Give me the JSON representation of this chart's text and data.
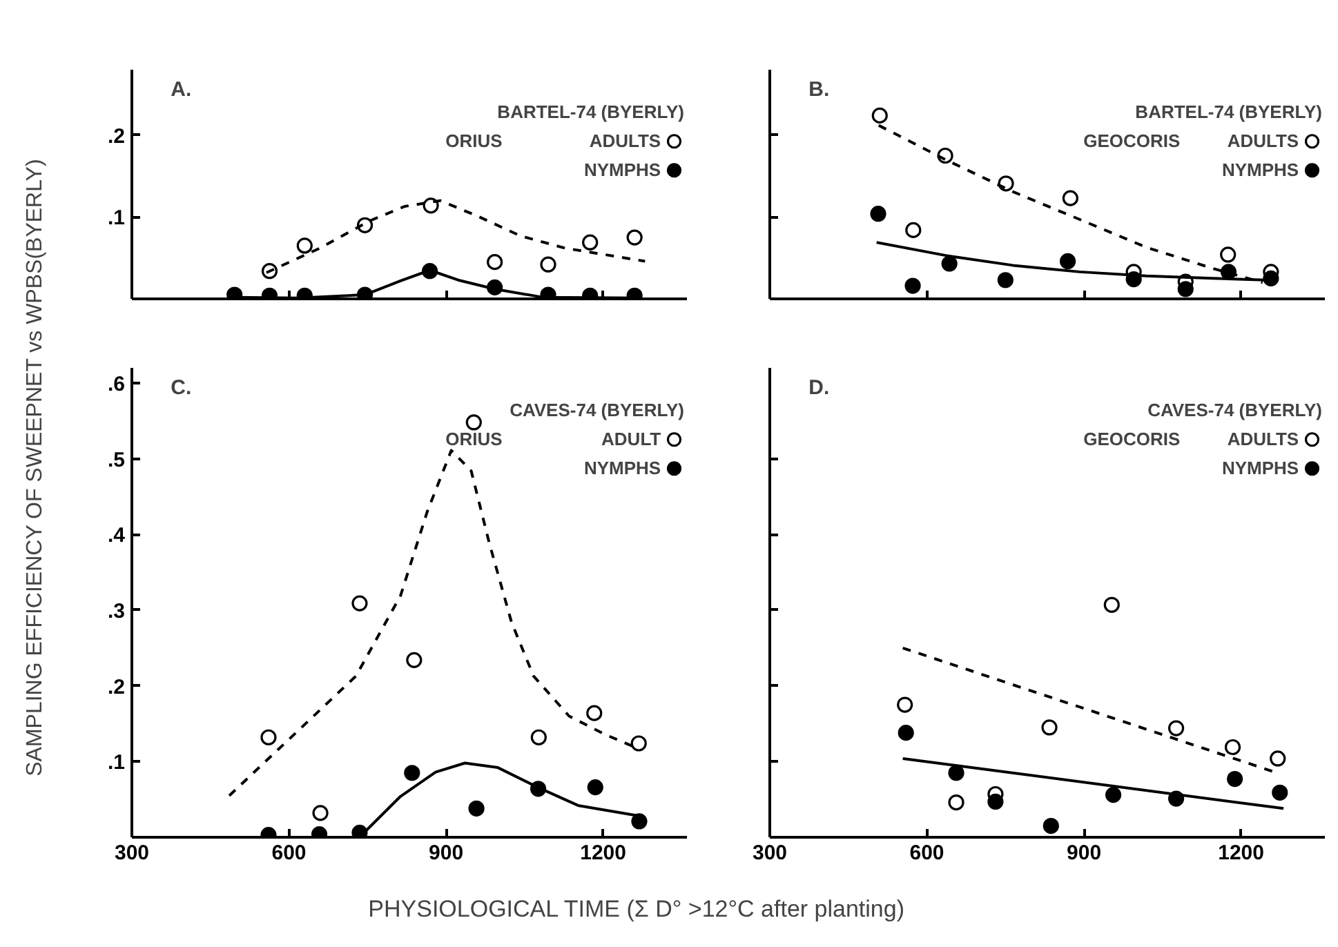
{
  "chart_data": [
    {
      "type": "scatter",
      "title": "A.",
      "subtitle": "BARTEL-74 (BYERLY)",
      "annotations": [
        "ORIUS"
      ],
      "xlim": [
        300,
        1360
      ],
      "ylim": [
        0,
        0.28
      ],
      "xticks": [
        300,
        600,
        900,
        1200
      ],
      "yticks": [
        {
          "value": 0.1,
          "label": ".1"
        },
        {
          "value": 0.2,
          "label": ".2"
        }
      ],
      "tick_labels": "y",
      "legend": "top right",
      "series": [
        {
          "name": "ADULTS",
          "color": "#ffffff",
          "marker": "circle",
          "x": [
            563,
            630,
            745,
            871,
            993,
            1095,
            1175,
            1260
          ],
          "values": [
            0.034,
            0.065,
            0.09,
            0.114,
            0.045,
            0.042,
            0.069,
            0.075
          ]
        },
        {
          "name": "NYMPHS",
          "color": "#000000",
          "marker": "circle",
          "x": [
            496,
            563,
            630,
            745,
            869,
            993,
            1095,
            1175,
            1260
          ],
          "values": [
            0.005,
            0.004,
            0.004,
            0.005,
            0.034,
            0.014,
            0.005,
            0.004,
            0.004
          ]
        },
        {
          "type": "line",
          "line_style": "dashed",
          "marker": "none",
          "color": "#000000",
          "x": [
            557,
            659,
            753,
            821,
            889,
            957,
            1042,
            1127,
            1280
          ],
          "values": [
            0.032,
            0.062,
            0.095,
            0.113,
            0.12,
            0.102,
            0.077,
            0.062,
            0.046
          ]
        },
        {
          "type": "line",
          "line_style": "solid",
          "marker": "none",
          "color": "#000000",
          "x": [
            496,
            617,
            745,
            813,
            869,
            923,
            993,
            1084,
            1271
          ],
          "values": [
            0.002,
            0.001,
            0.005,
            0.022,
            0.035,
            0.023,
            0.012,
            0.002,
            0.001
          ]
        }
      ]
    },
    {
      "type": "scatter",
      "title": "B.",
      "subtitle": "BARTEL-74 (BYERLY)",
      "annotations": [
        "GEOCORIS"
      ],
      "xlim": [
        300,
        1360
      ],
      "ylim": [
        0,
        0.28
      ],
      "xticks": [
        300,
        600,
        900,
        1200
      ],
      "yticks": [
        {
          "value": 0.1,
          "label": null
        },
        {
          "value": 0.2,
          "label": null
        }
      ],
      "tick_labels": false,
      "legend": "top right",
      "series": [
        {
          "name": "ADULTS",
          "color": "#ffffff",
          "marker": "circle",
          "x": [
            510,
            574,
            635,
            751,
            874,
            995,
            1094,
            1175,
            1257
          ],
          "values": [
            0.224,
            0.084,
            0.175,
            0.141,
            0.123,
            0.033,
            0.021,
            0.054,
            0.033
          ]
        },
        {
          "name": "NYMPHS",
          "color": "#000000",
          "marker": "circle",
          "x": [
            507,
            573,
            643,
            750,
            869,
            995,
            1094,
            1176,
            1257
          ],
          "values": [
            0.104,
            0.016,
            0.043,
            0.023,
            0.046,
            0.024,
            0.012,
            0.033,
            0.025
          ]
        },
        {
          "type": "line",
          "line_style": "dashed",
          "marker": "none",
          "color": "#000000",
          "x": [
            508,
            636,
            764,
            892,
            1019,
            1147,
            1241
          ],
          "values": [
            0.212,
            0.17,
            0.131,
            0.097,
            0.063,
            0.037,
            0.02
          ]
        },
        {
          "type": "line",
          "line_style": "solid",
          "marker": "none",
          "color": "#000000",
          "x": [
            504,
            636,
            764,
            892,
            1019,
            1147,
            1249
          ],
          "values": [
            0.069,
            0.053,
            0.041,
            0.033,
            0.028,
            0.025,
            0.023
          ]
        }
      ]
    },
    {
      "type": "scatter",
      "title": "C.",
      "subtitle": "CAVES-74 (BYERLY)",
      "annotations": [
        "ORIUS"
      ],
      "xlabel": "PHYSIOLOGICAL TIME (Σ D° >12°C after planting)",
      "ylabel": "SAMPLING EFFICIENCY OF SWEEPNET vs WPBS(BYERLY)",
      "xlim": [
        300,
        1360
      ],
      "ylim": [
        0,
        0.62
      ],
      "xticks": [
        300,
        600,
        900,
        1200
      ],
      "yticks": [
        {
          "value": 0.1,
          "label": ".1"
        },
        {
          "value": 0.2,
          "label": ".2"
        },
        {
          "value": 0.3,
          "label": ".3"
        },
        {
          "value": 0.4,
          "label": ".4"
        },
        {
          "value": 0.5,
          "label": ".5"
        },
        {
          "value": 0.6,
          "label": ".6"
        }
      ],
      "legend": "top right",
      "series": [
        {
          "name": "ADULT",
          "color": "#ffffff",
          "marker": "circle",
          "x": [
            561,
            660,
            735,
            839,
            953,
            1077,
            1183,
            1268
          ],
          "values": [
            0.132,
            0.032,
            0.309,
            0.234,
            0.548,
            0.132,
            0.164,
            0.124
          ]
        },
        {
          "name": "NYMPHS",
          "color": "#000000",
          "marker": "circle",
          "x": [
            561,
            658,
            735,
            835,
            958,
            1076,
            1185,
            1269
          ],
          "values": [
            0.003,
            0.004,
            0.006,
            0.085,
            0.038,
            0.064,
            0.066,
            0.021
          ]
        },
        {
          "type": "line",
          "line_style": "dashed",
          "marker": "none",
          "color": "#000000",
          "x": [
            486,
            601,
            728,
            813,
            864,
            910,
            948,
            982,
            1025,
            1067,
            1135,
            1203,
            1264
          ],
          "values": [
            0.055,
            0.13,
            0.213,
            0.319,
            0.43,
            0.511,
            0.484,
            0.39,
            0.284,
            0.213,
            0.16,
            0.136,
            0.118
          ]
        },
        {
          "type": "line",
          "line_style": "solid",
          "marker": "none",
          "color": "#000000",
          "x": [
            736,
            813,
            880,
            936,
            999,
            1075,
            1152,
            1270
          ],
          "values": [
            0.001,
            0.054,
            0.086,
            0.098,
            0.092,
            0.066,
            0.042,
            0.028
          ]
        }
      ]
    },
    {
      "type": "scatter",
      "title": "D.",
      "subtitle": "CAVES-74 (BYERLY)",
      "annotations": [
        "GEOCORIS"
      ],
      "xlim": [
        300,
        1360
      ],
      "ylim": [
        0,
        0.62
      ],
      "xticks": [
        300,
        600,
        900,
        1200
      ],
      "yticks": [
        {
          "value": 0.1,
          "label": null
        },
        {
          "value": 0.2,
          "label": null
        },
        {
          "value": 0.3,
          "label": null
        },
        {
          "value": 0.4,
          "label": null
        },
        {
          "value": 0.5,
          "label": null
        }
      ],
      "tick_labels": "x",
      "legend": "top right",
      "series": [
        {
          "name": "ADULTS",
          "color": "#ffffff",
          "marker": "circle",
          "x": [
            558,
            656,
            731,
            834,
            953,
            1076,
            1184,
            1270
          ],
          "values": [
            0.175,
            0.046,
            0.057,
            0.145,
            0.307,
            0.144,
            0.119,
            0.104
          ]
        },
        {
          "name": "NYMPHS",
          "color": "#000000",
          "marker": "circle",
          "x": [
            560,
            656,
            731,
            837,
            956,
            1076,
            1188,
            1274
          ],
          "values": [
            0.138,
            0.085,
            0.047,
            0.015,
            0.056,
            0.051,
            0.077,
            0.059
          ]
        },
        {
          "type": "line",
          "line_style": "dashed",
          "marker": "none",
          "color": "#000000",
          "x": [
            554,
            1269
          ],
          "values": [
            0.25,
            0.085
          ]
        },
        {
          "type": "line",
          "line_style": "solid",
          "marker": "none",
          "color": "#000000",
          "x": [
            554,
            1281
          ],
          "values": [
            0.104,
            0.038
          ]
        }
      ]
    }
  ]
}
